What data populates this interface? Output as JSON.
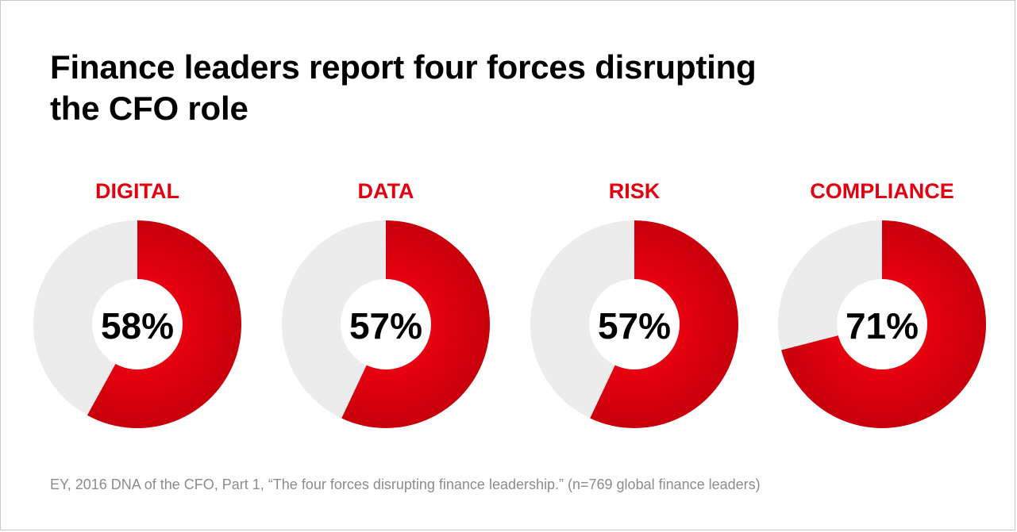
{
  "title": {
    "line1": "Finance leaders report four forces disrupting",
    "line2": "the CFO role"
  },
  "source": "EY, 2016 DNA of the CFO, Part 1, “The four forces disrupting finance leadership.” (n=769 global finance leaders)",
  "colors": {
    "accent": "#e3000f",
    "accent_dark": "#c8000c",
    "remainder": "#ececec",
    "title": "#000000",
    "source": "#8c8c8c"
  },
  "chart_data": [
    {
      "type": "pie",
      "label": "DIGITAL",
      "value": 58,
      "value_label": "58%"
    },
    {
      "type": "pie",
      "label": "DATA",
      "value": 57,
      "value_label": "57%"
    },
    {
      "type": "pie",
      "label": "RISK",
      "value": 57,
      "value_label": "57%"
    },
    {
      "type": "pie",
      "label": "COMPLIANCE",
      "value": 71,
      "value_label": "71%"
    }
  ]
}
